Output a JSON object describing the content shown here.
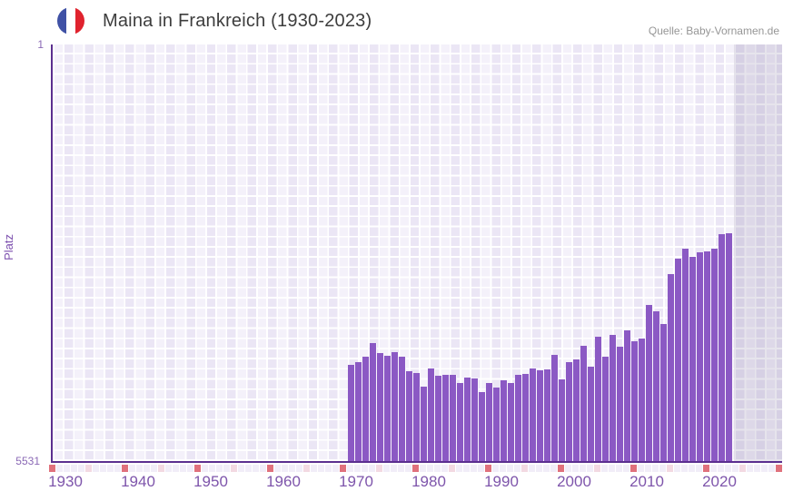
{
  "header": {
    "title": "Maina in Frankreich (1930-2023)",
    "source": "Quelle: Baby-Vornamen.de",
    "flag_icon": "france-flag-circle-icon"
  },
  "chart_data": {
    "type": "bar",
    "title": "Maina in Frankreich (1930-2023)",
    "xlabel": "",
    "ylabel": "Platz",
    "y_axis": {
      "top_label": "1",
      "bottom_label": "5531",
      "min": 1,
      "max": 5531,
      "inverted": true,
      "note": "rank 1 at top, bars grow upward from rank 5531 baseline"
    },
    "x_axis": {
      "first_grid_year": 1930,
      "last_grid_year": 2030,
      "data_start": 1971,
      "data_end": 2023,
      "tick_labels": [
        "1930",
        "1940",
        "1950",
        "1960",
        "1970",
        "1980",
        "1990",
        "2000",
        "2010",
        "2020"
      ]
    },
    "legend": "none",
    "grid": "decorative white square grid on lavender",
    "series": [
      {
        "name": "Platz",
        "years": [
          1971,
          1972,
          1973,
          1974,
          1975,
          1976,
          1977,
          1978,
          1979,
          1980,
          1981,
          1982,
          1983,
          1984,
          1985,
          1986,
          1987,
          1988,
          1989,
          1990,
          1991,
          1992,
          1993,
          1994,
          1995,
          1996,
          1997,
          1998,
          1999,
          2000,
          2001,
          2002,
          2003,
          2004,
          2005,
          2006,
          2007,
          2008,
          2009,
          2010,
          2011,
          2012,
          2013,
          2014,
          2015,
          2016,
          2017,
          2018,
          2019,
          2020,
          2021,
          2022,
          2023
        ],
        "ranks": [
          4250,
          4220,
          4150,
          3960,
          4100,
          4130,
          4090,
          4140,
          4340,
          4360,
          4540,
          4300,
          4400,
          4380,
          4380,
          4490,
          4420,
          4430,
          4620,
          4500,
          4550,
          4460,
          4490,
          4380,
          4370,
          4300,
          4330,
          4310,
          4120,
          4450,
          4220,
          4180,
          4000,
          4280,
          3880,
          4150,
          3860,
          4010,
          3790,
          3940,
          3900,
          3460,
          3540,
          3710,
          3050,
          2840,
          2710,
          2820,
          2760,
          2750,
          2710,
          2520,
          2510
        ]
      }
    ],
    "colors": {
      "bar": "#8b59c4",
      "axis_line": "#5b2f8f",
      "tick_text": "#8a68b5",
      "x_label_text": "#7e55ab",
      "plot_background": "#ebe6f5",
      "future_shade": "rgba(130,120,160,0.20)",
      "strip_decade": "#e0717c",
      "strip_half_decade": "#f3d9e2",
      "strip_default": "#f1edf8",
      "title_text": "#3d3d3d",
      "source_text": "#969696"
    }
  }
}
